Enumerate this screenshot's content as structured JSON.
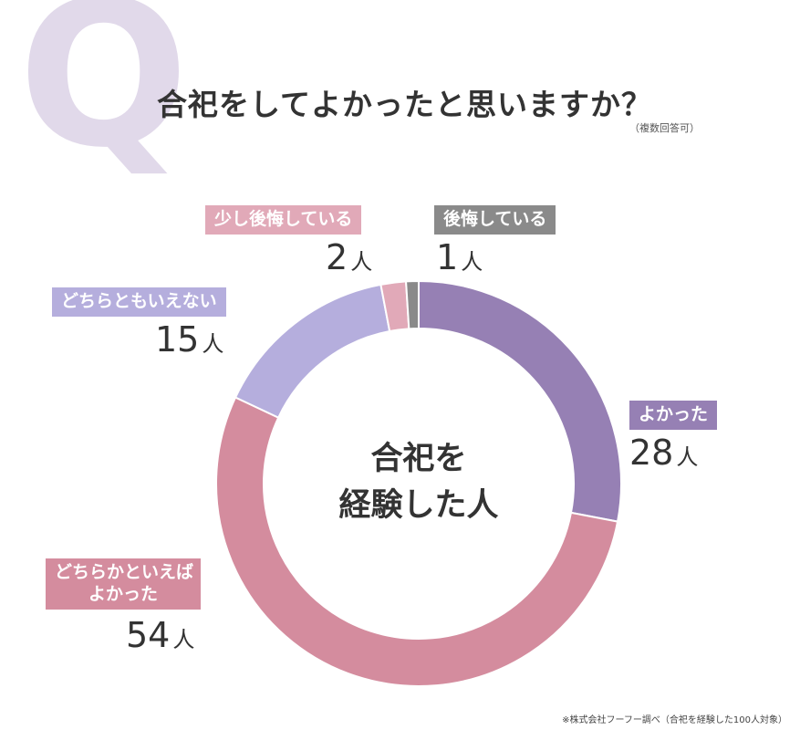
{
  "header": {
    "q_letter": "Q",
    "title": "合祀をしてよかったと思いますか？",
    "note": "（複数回答可）"
  },
  "chart_data": {
    "type": "pie",
    "categories": [
      "よかった",
      "どちらかといえばよかった",
      "どちらともいえない",
      "少し後悔している",
      "後悔している"
    ],
    "values": [
      28,
      54,
      15,
      2,
      1
    ],
    "unit": "人",
    "colors": [
      "#9680b4",
      "#d48c9e",
      "#b5aedd",
      "#e1a9b8",
      "#8a8a8a"
    ],
    "center_label": [
      "合祀を",
      "経験した人"
    ]
  },
  "labels": {
    "yokatta": {
      "text": "よかった",
      "count": "28",
      "unit": "人"
    },
    "dochiraka": {
      "line1": "どちらかといえば",
      "line2": "よかった",
      "count": "54",
      "unit": "人"
    },
    "dochiramo": {
      "text": "どちらともいえない",
      "count": "15",
      "unit": "人"
    },
    "sukoshi": {
      "text": "少し後悔している",
      "count": "2",
      "unit": "人"
    },
    "koukai": {
      "text": "後悔している",
      "count": "1",
      "unit": "人"
    }
  },
  "footnote": "※株式会社フーフー調べ（合祀を経験した100人対象）"
}
